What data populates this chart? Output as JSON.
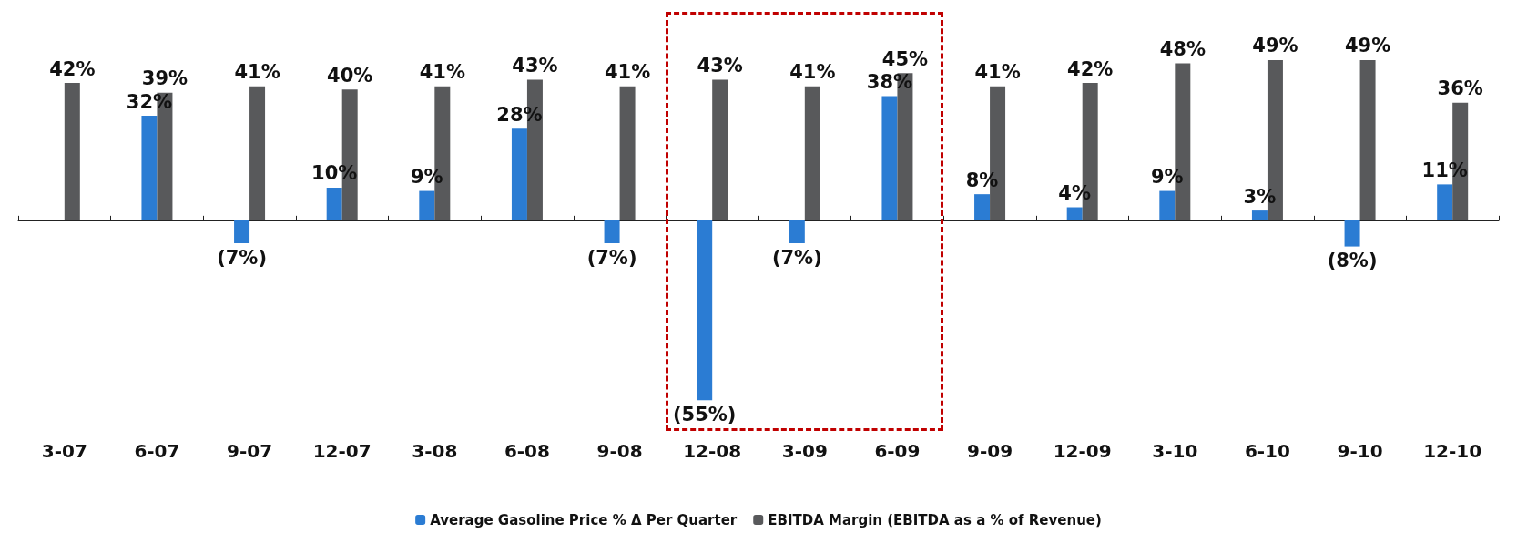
{
  "chart_data": {
    "type": "bar",
    "categories": [
      "3-07",
      "6-07",
      "9-07",
      "12-07",
      "3-08",
      "6-08",
      "9-08",
      "12-08",
      "3-09",
      "6-09",
      "9-09",
      "12-09",
      "3-10",
      "6-10",
      "9-10",
      "12-10"
    ],
    "series": [
      {
        "name": "Average Gasoline Price % Δ Per Quarter",
        "color": "#2b7cd3",
        "values": [
          null,
          32,
          -7,
          10,
          9,
          28,
          -7,
          -55,
          -7,
          38,
          8,
          4,
          9,
          3,
          -8,
          11
        ],
        "value_labels": [
          null,
          "32%",
          "(7%)",
          "10%",
          "9%",
          "28%",
          "(7%)",
          "(55%)",
          "(7%)",
          "38%",
          "8%",
          "4%",
          "9%",
          "3%",
          "(8%)",
          "11%"
        ]
      },
      {
        "name": "EBITDA Margin (EBITDA as a % of Revenue)",
        "color": "#58595b",
        "values": [
          42,
          39,
          41,
          40,
          41,
          43,
          41,
          43,
          41,
          45,
          41,
          42,
          48,
          49,
          49,
          36
        ],
        "value_labels": [
          "42%",
          "39%",
          "41%",
          "40%",
          "41%",
          "43%",
          "41%",
          "43%",
          "41%",
          "45%",
          "41%",
          "42%",
          "48%",
          "49%",
          "49%",
          "36%"
        ]
      }
    ],
    "legend": "bottom"
  }
}
